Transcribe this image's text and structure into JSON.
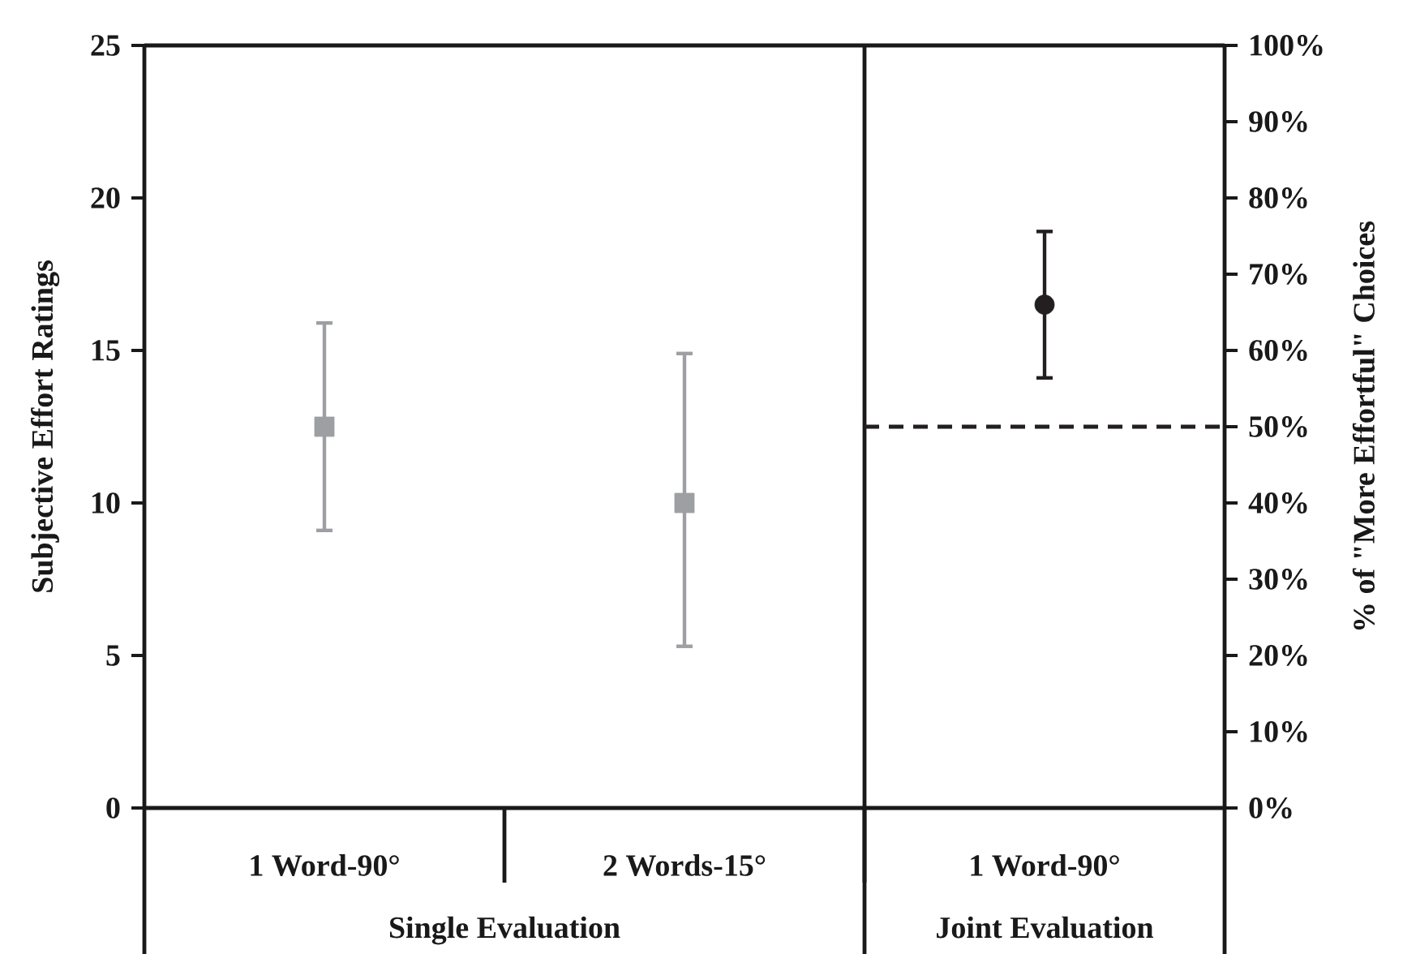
{
  "chart_data": {
    "type": "scatter",
    "categories": [
      "1 Word-90°",
      "2 Words-15°",
      "1 Word-90°"
    ],
    "ylabel": "Subjective Effort Ratings",
    "y2label": "% of \"More Effortful\" Choices",
    "ylim": [
      0,
      25
    ],
    "yticks": [
      0,
      5,
      10,
      15,
      20,
      25
    ],
    "y2lim": [
      0,
      100
    ],
    "y2ticks": [
      {
        "value": 0,
        "label": "0%"
      },
      {
        "value": 10,
        "label": "10%"
      },
      {
        "value": 20,
        "label": "20%"
      },
      {
        "value": 30,
        "label": "30%"
      },
      {
        "value": 40,
        "label": "40%"
      },
      {
        "value": 50,
        "label": "50%"
      },
      {
        "value": 60,
        "label": "60%"
      },
      {
        "value": 70,
        "label": "70%"
      },
      {
        "value": 80,
        "label": "80%"
      },
      {
        "value": 90,
        "label": "90%"
      },
      {
        "value": 100,
        "label": "100%"
      }
    ],
    "series": [
      {
        "color": "#9d9fa2",
        "marker": "square",
        "values": [
          12.5,
          10.0,
          null
        ],
        "errors": [
          [
            9.1,
            15.9
          ],
          [
            5.3,
            14.9
          ],
          null
        ]
      },
      {
        "color": "#231f20",
        "marker": "circle",
        "axis": "y2",
        "values": [
          null,
          null,
          66
        ],
        "errors": [
          null,
          null,
          [
            56.4,
            75.6
          ]
        ]
      }
    ],
    "ref_lines": [
      {
        "axis": "y2",
        "value": 50,
        "line_style": "dashed",
        "color": "#231f20"
      }
    ],
    "annotations": [
      "Single Evaluation",
      "Joint Evaluation"
    ],
    "grid": false
  }
}
